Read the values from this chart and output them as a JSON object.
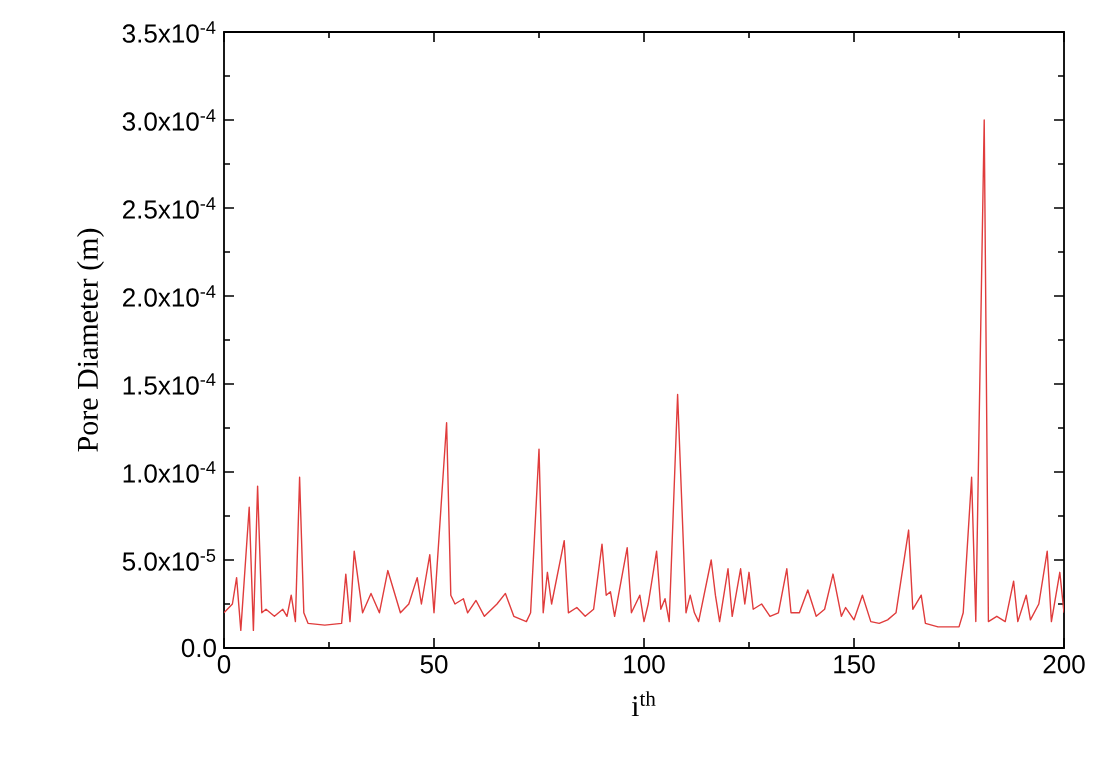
{
  "chart_data": {
    "type": "line",
    "xlabel": "i$^{th}$",
    "ylabel": "Pore Diameter (m)",
    "x": [
      0,
      2,
      3,
      4,
      6,
      7,
      8,
      9,
      10,
      12,
      14,
      15,
      16,
      17,
      18,
      19,
      20,
      24,
      28,
      29,
      30,
      31,
      33,
      35,
      37,
      39,
      42,
      44,
      46,
      47,
      49,
      50,
      53,
      54,
      55,
      57,
      58,
      60,
      62,
      65,
      67,
      69,
      72,
      73,
      75,
      76,
      77,
      78,
      81,
      82,
      84,
      86,
      88,
      90,
      91,
      92,
      93,
      96,
      97,
      99,
      100,
      101,
      103,
      104,
      105,
      106,
      108,
      110,
      111,
      112,
      113,
      116,
      117,
      118,
      120,
      121,
      123,
      124,
      125,
      126,
      128,
      130,
      132,
      134,
      135,
      137,
      139,
      141,
      143,
      145,
      147,
      148,
      150,
      152,
      154,
      156,
      158,
      160,
      163,
      164,
      166,
      167,
      170,
      175,
      176,
      178,
      179,
      181,
      182,
      184,
      186,
      188,
      189,
      191,
      192,
      194,
      196,
      197,
      199,
      200
    ],
    "series": [
      {
        "color": "#e03c3c",
        "values": [
          2e-05,
          2.5e-05,
          4e-05,
          1e-05,
          8e-05,
          1e-05,
          9.2e-05,
          2e-05,
          2.2e-05,
          1.8e-05,
          2.2e-05,
          1.8e-05,
          3e-05,
          1.5e-05,
          9.7e-05,
          2e-05,
          1.4e-05,
          1.3e-05,
          1.4e-05,
          4.2e-05,
          1.5e-05,
          5.5e-05,
          2e-05,
          3.1e-05,
          2e-05,
          4.4e-05,
          2e-05,
          2.5e-05,
          4e-05,
          2.5e-05,
          5.3e-05,
          2e-05,
          0.000128,
          3e-05,
          2.5e-05,
          2.8e-05,
          2e-05,
          2.7e-05,
          1.8e-05,
          2.5e-05,
          3.1e-05,
          1.8e-05,
          1.5e-05,
          2e-05,
          0.000113,
          2e-05,
          4.3e-05,
          2.5e-05,
          6.1e-05,
          2e-05,
          2.3e-05,
          1.8e-05,
          2.2e-05,
          5.9e-05,
          3e-05,
          3.2e-05,
          1.8e-05,
          5.7e-05,
          2e-05,
          3e-05,
          1.5e-05,
          2.5e-05,
          5.5e-05,
          2.2e-05,
          2.8e-05,
          1.5e-05,
          0.000144,
          2e-05,
          3e-05,
          2e-05,
          1.5e-05,
          5e-05,
          3e-05,
          1.5e-05,
          4.5e-05,
          1.8e-05,
          4.5e-05,
          2.5e-05,
          4.3e-05,
          2.2e-05,
          2.5e-05,
          1.8e-05,
          2e-05,
          4.5e-05,
          2e-05,
          2e-05,
          3.3e-05,
          1.8e-05,
          2.2e-05,
          4.2e-05,
          1.8e-05,
          2.3e-05,
          1.6e-05,
          3e-05,
          1.5e-05,
          1.4e-05,
          1.6e-05,
          2e-05,
          6.7e-05,
          2.2e-05,
          3e-05,
          1.4e-05,
          1.2e-05,
          1.2e-05,
          2e-05,
          9.7e-05,
          1.5e-05,
          0.0003,
          1.5e-05,
          1.8e-05,
          1.5e-05,
          3.8e-05,
          1.5e-05,
          3e-05,
          1.6e-05,
          2.5e-05,
          5.5e-05,
          1.5e-05,
          4.3e-05,
          2e-05
        ]
      }
    ],
    "xlim": [
      0,
      200
    ],
    "xticks": [
      0,
      50,
      100,
      150,
      200
    ],
    "ylim": [
      0,
      0.00035
    ],
    "yticks": [
      {
        "value": 0,
        "label": "0.0"
      },
      {
        "value": 5e-05,
        "label": "5.0x10$^{-5}$"
      },
      {
        "value": 0.0001,
        "label": "1.0x10$^{-4}$"
      },
      {
        "value": 0.00015,
        "label": "1.5x10$^{-4}$"
      },
      {
        "value": 0.0002,
        "label": "2.0x10$^{-4}$"
      },
      {
        "value": 0.00025,
        "label": "2.5x10$^{-4}$"
      },
      {
        "value": 0.0003,
        "label": "3.0x10$^{-4}$"
      },
      {
        "value": 0.00035,
        "label": "3.5x10$^{-4}$"
      }
    ],
    "marker": "none",
    "line_style": "solid"
  }
}
